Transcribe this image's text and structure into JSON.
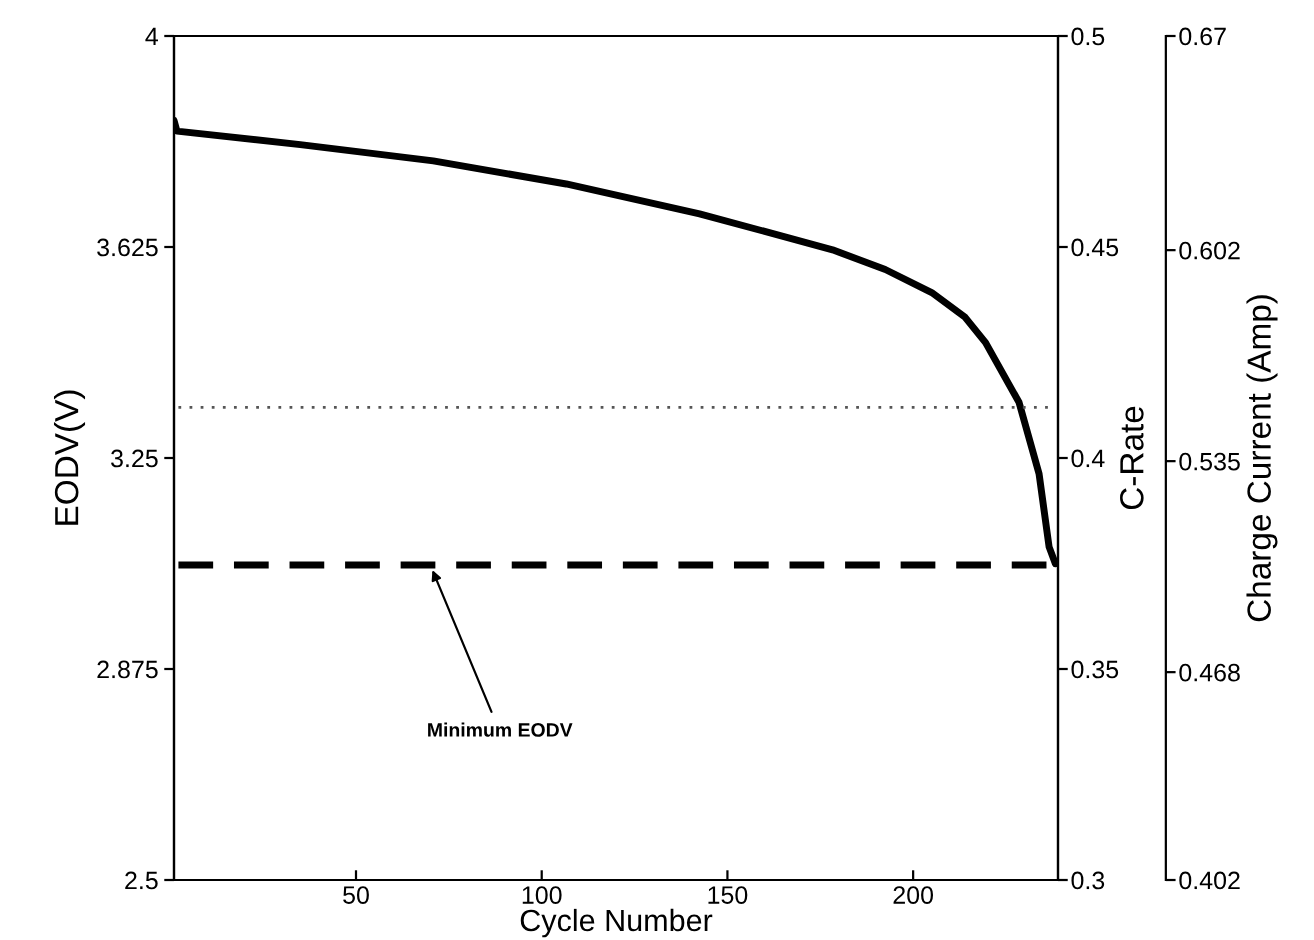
{
  "chart_data": {
    "type": "line",
    "xlabel": "Cycle Number",
    "ylabel": "EODV(V)",
    "y2label": "C-Rate",
    "y3label": "Charge Current (Amp)",
    "series": [
      {
        "color": "#000000",
        "x": [
          1,
          1.8,
          35,
          70.8,
          106.6,
          142.5,
          178.3,
          192.5,
          205,
          214,
          219.5,
          228.5,
          233.9,
          236.6,
          238.3
        ],
        "values": [
          3.85,
          3.831,
          3.807,
          3.778,
          3.737,
          3.684,
          3.62,
          3.585,
          3.544,
          3.5,
          3.455,
          3.349,
          3.222,
          3.092,
          3.062
        ]
      }
    ],
    "xlim": [
      1,
      239
    ],
    "xticks": [
      50,
      100,
      150,
      200
    ],
    "ylim": [
      2.5,
      4
    ],
    "yticks": [
      2.5,
      2.875,
      3.25,
      3.625,
      4
    ],
    "y2lim": [
      0.3,
      0.5
    ],
    "y2ticks": [
      0.3,
      0.35,
      0.4,
      0.45,
      0.5
    ],
    "y3lim": [
      0.402,
      0.67
    ],
    "y3ticks": [
      0.402,
      0.468,
      0.535,
      0.602,
      0.67
    ],
    "ref_lines": [
      {
        "axis": "y",
        "value": 3.34,
        "line_style": "dotted",
        "color": "#555555"
      },
      {
        "axis": "y",
        "value": 3.06,
        "line_style": "dashed",
        "color": "#000000"
      }
    ],
    "annotations": [
      {
        "text": "Minimum EODV",
        "x": 70,
        "y": 3.06
      }
    ],
    "grid": false,
    "legend": false,
    "marker": "none",
    "line_style": "solid"
  }
}
